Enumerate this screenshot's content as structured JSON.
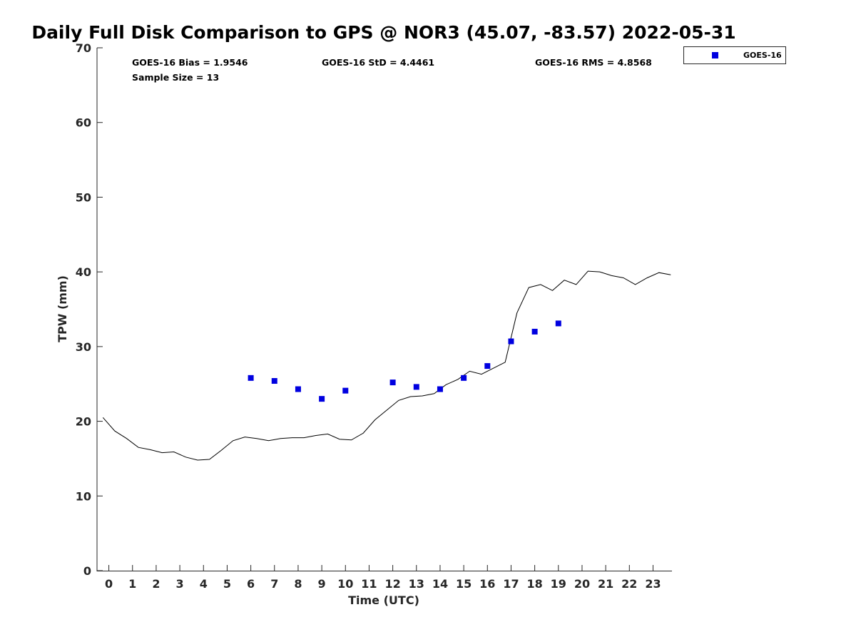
{
  "chart_data": {
    "type": "scatter",
    "title": "Daily Full Disk Comparison to GPS @ NOR3 (45.07, -83.57) 2022-05-31",
    "xlabel": "Time (UTC)",
    "ylabel": "TPW (mm)",
    "xlim": [
      -0.5,
      23.8
    ],
    "ylim": [
      0,
      70
    ],
    "x_ticks": [
      "0",
      "1",
      "2",
      "3",
      "4",
      "5",
      "6",
      "7",
      "8",
      "9",
      "10",
      "11",
      "12",
      "13",
      "14",
      "15",
      "16",
      "17",
      "18",
      "19",
      "20",
      "21",
      "22",
      "23"
    ],
    "y_ticks": [
      "0",
      "10",
      "20",
      "30",
      "40",
      "50",
      "60",
      "70"
    ],
    "grid": false,
    "legend_position": "top-right outside",
    "stats": {
      "bias": "GOES-16 Bias = 1.9546",
      "sample_size": "Sample Size = 13",
      "std": "GOES-16 StD = 4.4461",
      "rms": "GOES-16 RMS = 4.8568"
    },
    "series": [
      {
        "name": "GOES-16",
        "kind": "scatter",
        "color": "#0000e0",
        "marker": "square",
        "x": [
          6,
          7,
          8,
          9,
          10,
          12,
          13,
          14,
          15,
          16,
          17,
          18,
          19
        ],
        "y": [
          25.8,
          25.4,
          24.3,
          23.0,
          24.1,
          25.2,
          24.6,
          24.3,
          25.8,
          27.4,
          30.7,
          32.0,
          33.1
        ]
      },
      {
        "kind": "line",
        "color": "#000000",
        "x": [
          -0.25,
          0.25,
          0.75,
          1.25,
          1.75,
          2.25,
          2.75,
          3.25,
          3.75,
          4.25,
          4.75,
          5.25,
          5.75,
          6.25,
          6.75,
          7.25,
          7.75,
          8.25,
          8.75,
          9.25,
          9.75,
          10.25,
          10.75,
          11.25,
          11.75,
          12.25,
          12.75,
          13.25,
          13.75,
          14.25,
          14.75,
          15.25,
          15.75,
          16.25,
          16.75,
          17.25,
          17.75,
          18.25,
          18.75,
          19.25,
          19.75,
          20.25,
          20.75,
          21.25,
          21.75,
          22.25,
          22.75,
          23.25,
          23.75
        ],
        "y": [
          20.5,
          18.7,
          17.7,
          16.5,
          16.2,
          15.8,
          15.9,
          15.2,
          14.8,
          14.9,
          16.1,
          17.4,
          17.9,
          17.7,
          17.4,
          17.7,
          17.8,
          17.8,
          18.1,
          18.3,
          17.6,
          17.5,
          18.4,
          20.2,
          21.5,
          22.8,
          23.3,
          23.4,
          23.7,
          24.9,
          25.6,
          26.7,
          26.3,
          27.1,
          27.9,
          34.5,
          37.9,
          38.3,
          37.5,
          38.9,
          38.3,
          40.1,
          40.0,
          39.5,
          39.2,
          38.3,
          39.2,
          39.9,
          39.6
        ]
      }
    ]
  }
}
